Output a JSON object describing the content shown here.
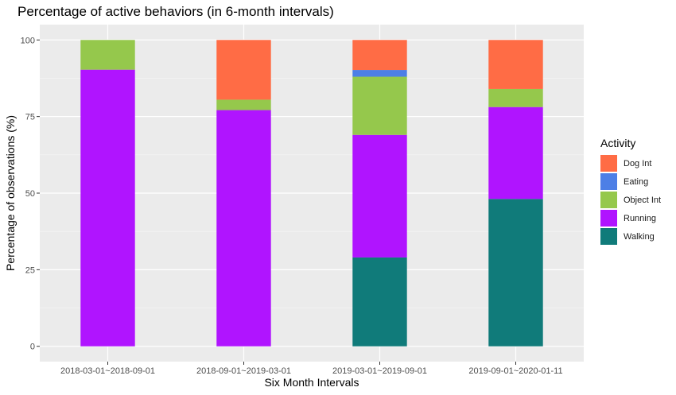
{
  "chart_data": {
    "type": "bar",
    "stacked": true,
    "title": "Percentage of active behaviors (in 6-month intervals)",
    "xlabel": "Six Month Intervals",
    "ylabel": "Percentage of observations (%)",
    "ylim": [
      0,
      100
    ],
    "yticks": [
      0,
      25,
      50,
      75,
      100
    ],
    "grid": true,
    "legend_position": "right",
    "legend_title": "Activity",
    "categories": [
      "2018-03-01~2018-09-01",
      "2018-09-01~2019-03-01",
      "2019-03-01~2019-09-01",
      "2019-09-01~2020-01-11"
    ],
    "series": [
      {
        "name": "Dog Int",
        "color": "#FF6C45",
        "values": [
          0,
          19.5,
          9.8,
          16
        ]
      },
      {
        "name": "Eating",
        "color": "#4D7FE6",
        "values": [
          0,
          0,
          2.2,
          0
        ]
      },
      {
        "name": "Object Int",
        "color": "#95C84C",
        "values": [
          9.7,
          3.4,
          19,
          5.9
        ]
      },
      {
        "name": "Running",
        "color": "#B014FF",
        "values": [
          90.3,
          77.1,
          40,
          30
        ]
      },
      {
        "name": "Walking",
        "color": "#107B7A",
        "values": [
          0,
          0,
          29,
          48.1
        ]
      }
    ]
  }
}
